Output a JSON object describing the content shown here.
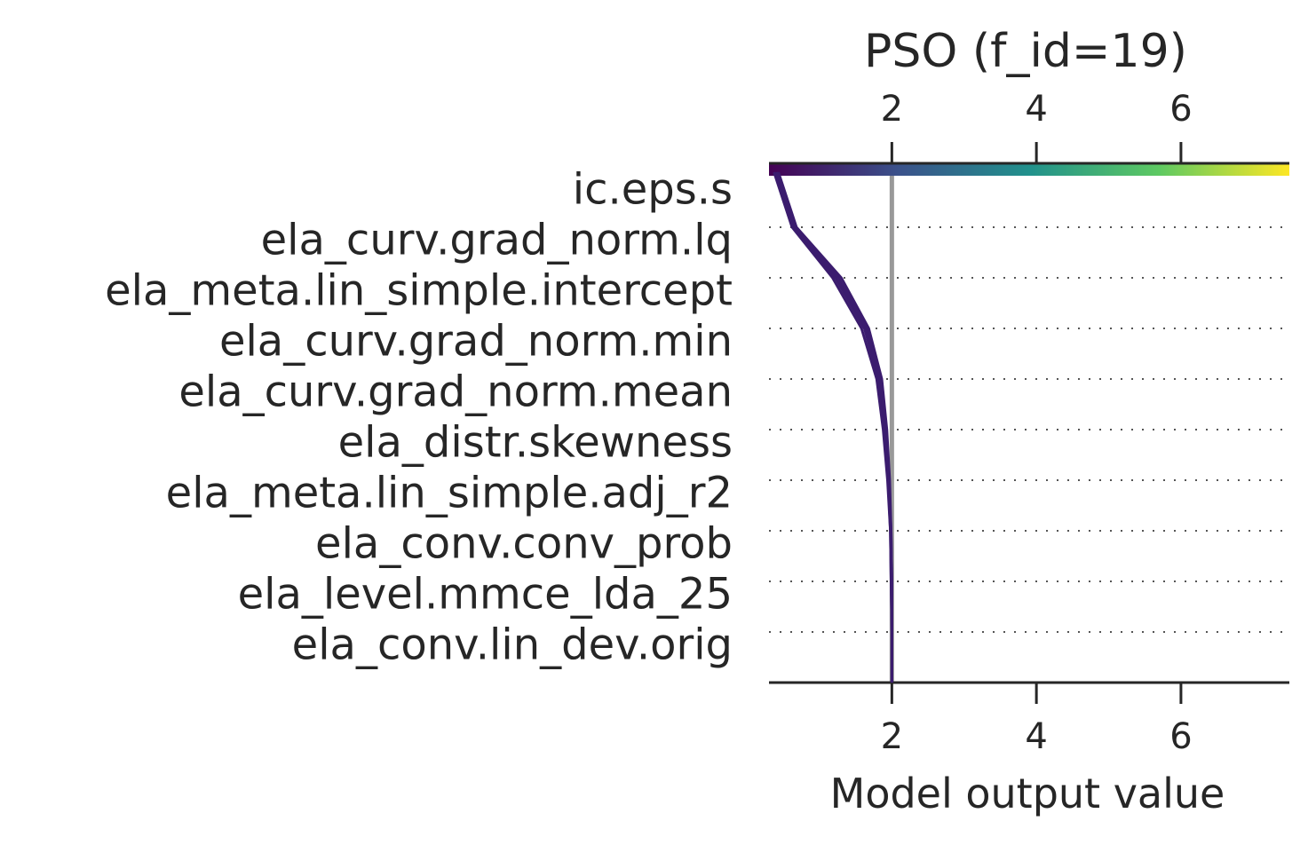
{
  "chart_data": {
    "type": "line",
    "title": "PSO (f_id=19)",
    "xlabel": "Model output value",
    "xlim": [
      0.3,
      7.5
    ],
    "xticks": [
      "2",
      "4",
      "6"
    ],
    "base_value": 2.0,
    "features": [
      "ic.eps.s",
      "ela_curv.grad_norm.lq",
      "ela_meta.lin_simple.intercept",
      "ela_curv.grad_norm.min",
      "ela_curv.grad_norm.mean",
      "ela_distr.skewness",
      "ela_meta.lin_simple.adj_r2",
      "ela_conv.conv_prob",
      "ela_level.mmce_lda_25",
      "ela_conv.lin_dev.orig"
    ],
    "colormap": [
      "#440154",
      "#3b528b",
      "#21918c",
      "#5ec962",
      "#fde725"
    ],
    "line_color": "#3b1c6e",
    "base_line_color": "#999999",
    "series": [
      {
        "values": [
          2.0,
          2.0,
          2.0,
          1.99,
          1.97,
          1.93,
          1.86,
          1.68,
          1.3,
          0.68
        ]
      },
      {
        "values": [
          2.0,
          2.0,
          1.99,
          1.98,
          1.95,
          1.9,
          1.82,
          1.62,
          1.22,
          0.65
        ]
      },
      {
        "values": [
          2.0,
          2.0,
          2.0,
          1.99,
          1.96,
          1.91,
          1.84,
          1.65,
          1.26,
          0.66
        ]
      },
      {
        "values": [
          2.0,
          2.0,
          1.99,
          1.98,
          1.94,
          1.88,
          1.79,
          1.58,
          1.18,
          0.62
        ]
      }
    ]
  }
}
